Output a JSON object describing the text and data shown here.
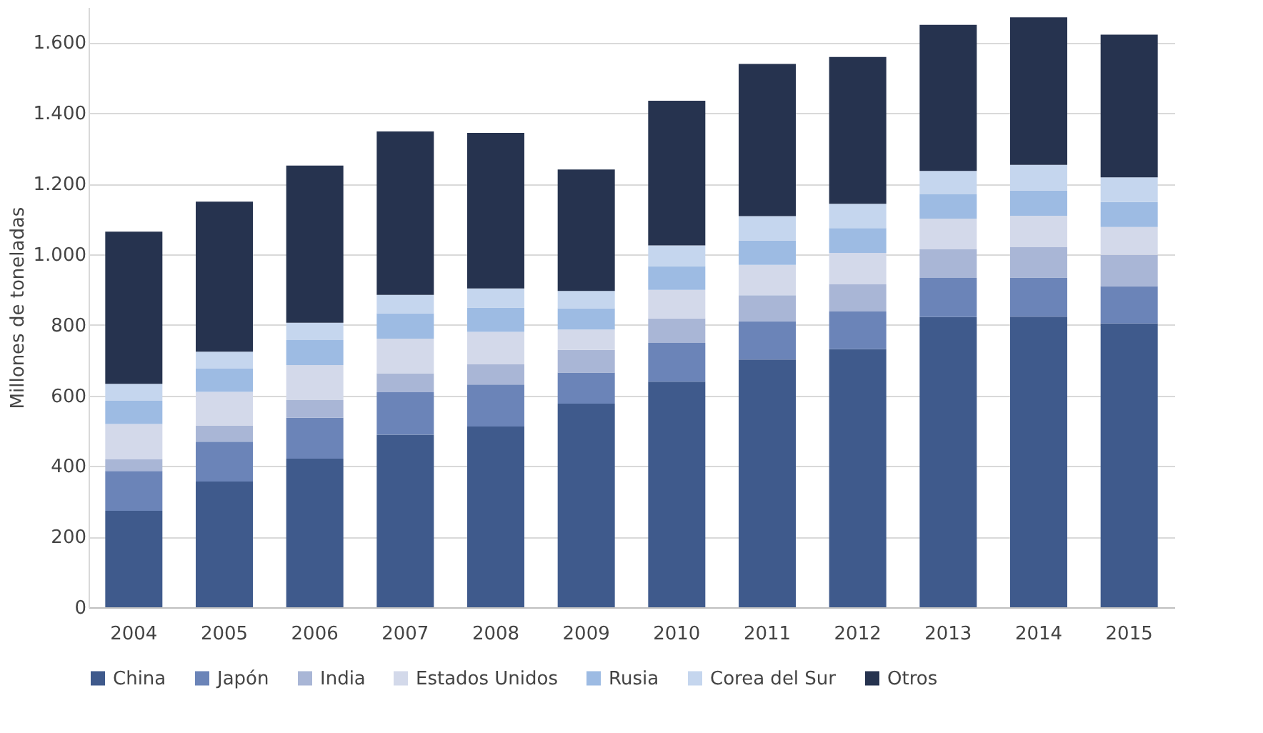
{
  "chart_data": {
    "type": "bar",
    "stacked": true,
    "ylabel": "Millones de toneladas",
    "categories": [
      "2004",
      "2005",
      "2006",
      "2007",
      "2008",
      "2009",
      "2010",
      "2011",
      "2012",
      "2013",
      "2014",
      "2015"
    ],
    "series": [
      {
        "name": "China",
        "color": "#3f5a8c",
        "values": [
          273,
          356,
          421,
          489,
          512,
          577,
          639,
          702,
          731,
          822,
          823,
          804
        ]
      },
      {
        "name": "Japón",
        "color": "#6b84b8",
        "values": [
          113,
          113,
          116,
          120,
          119,
          88,
          110,
          108,
          107,
          111,
          111,
          105
        ]
      },
      {
        "name": "India",
        "color": "#a9b6d6",
        "values": [
          33,
          46,
          50,
          54,
          58,
          64,
          69,
          74,
          77,
          81,
          87,
          89
        ]
      },
      {
        "name": "Estados Unidos",
        "color": "#d3d9ea",
        "values": [
          100,
          95,
          99,
          98,
          91,
          58,
          81,
          86,
          89,
          87,
          88,
          79
        ]
      },
      {
        "name": "Rusia",
        "color": "#9dbbe3",
        "values": [
          66,
          66,
          71,
          72,
          69,
          60,
          67,
          69,
          70,
          69,
          72,
          71
        ]
      },
      {
        "name": "Corea del Sur",
        "color": "#c5d6ee",
        "values": [
          48,
          48,
          49,
          52,
          54,
          49,
          59,
          69,
          69,
          66,
          72,
          70
        ]
      },
      {
        "name": "Otros",
        "color": "#26334f",
        "values": [
          431,
          425,
          445,
          463,
          441,
          344,
          410,
          431,
          416,
          414,
          418,
          404
        ]
      }
    ],
    "ylim": [
      0,
      1700
    ],
    "yticks": [
      0,
      200,
      400,
      600,
      800,
      {
        "value": 1000,
        "label": "1.000"
      },
      {
        "value": 1200,
        "label": "1.200"
      },
      {
        "value": 1400,
        "label": "1.400"
      },
      {
        "value": 1600,
        "label": "1.600"
      }
    ],
    "grid": "y",
    "legend": "bottom"
  }
}
